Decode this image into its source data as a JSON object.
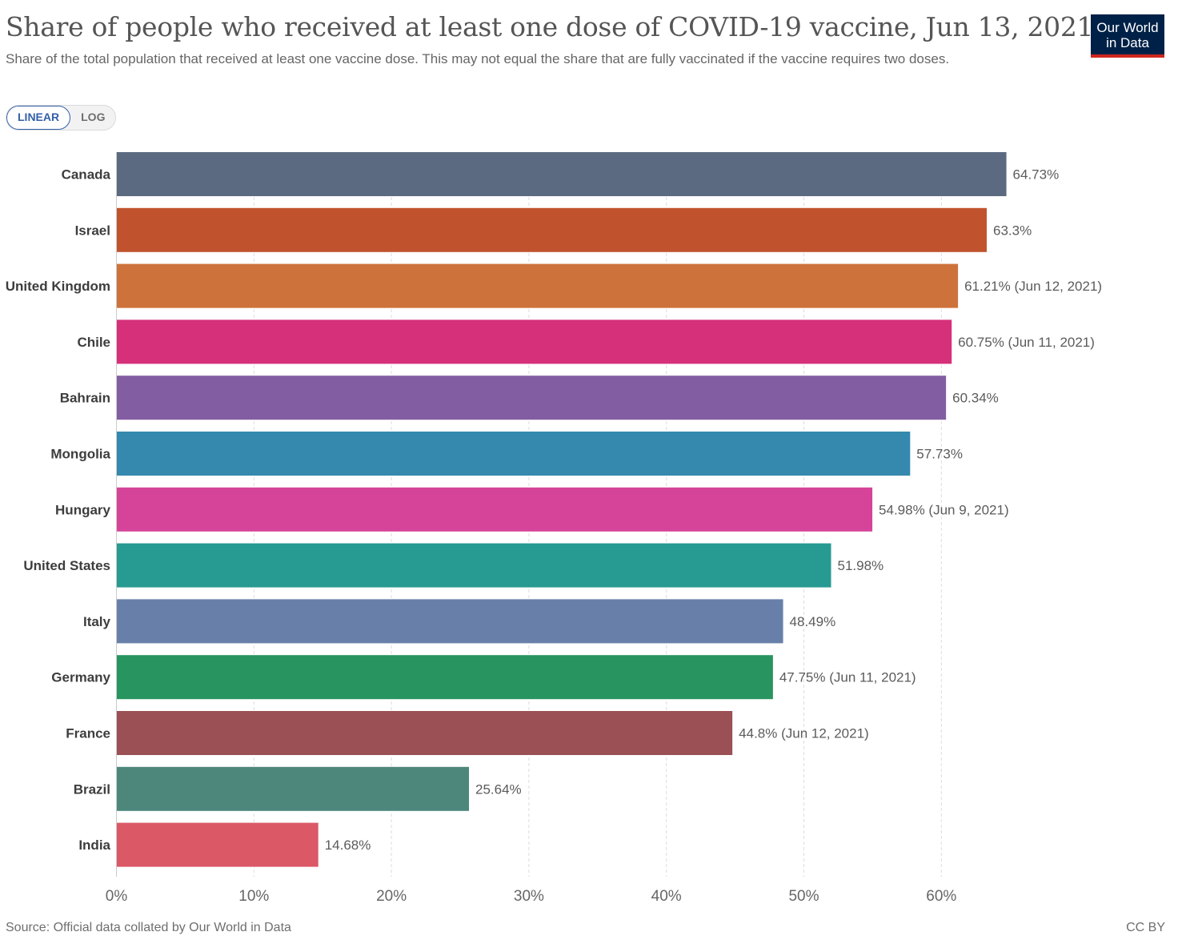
{
  "header": {
    "title": "Share of people who received at least one dose of COVID-19 vaccine, Jun 13, 2021",
    "subtitle": "Share of the total population that received at least one vaccine dose. This may not equal the share that are fully vaccinated if the vaccine requires two doses.",
    "logo_line1": "Our World",
    "logo_line2": "in Data"
  },
  "scale_toggle": {
    "linear_label": "LINEAR",
    "log_label": "LOG",
    "selected": "LINEAR"
  },
  "footer": {
    "source": "Source: Official data collated by Our World in Data",
    "license": "CC BY"
  },
  "chart_data": {
    "type": "bar",
    "orientation": "horizontal",
    "categories": [
      "Canada",
      "Israel",
      "United Kingdom",
      "Chile",
      "Bahrain",
      "Mongolia",
      "Hungary",
      "United States",
      "Italy",
      "Germany",
      "France",
      "Brazil",
      "India"
    ],
    "values": [
      64.73,
      63.3,
      61.21,
      60.75,
      60.34,
      57.73,
      54.98,
      51.98,
      48.49,
      47.75,
      44.8,
      25.64,
      14.68
    ],
    "value_labels": [
      "64.73%",
      "63.3%",
      "61.21% (Jun 12, 2021)",
      "60.75% (Jun 11, 2021)",
      "60.34%",
      "57.73%",
      "54.98% (Jun 9, 2021)",
      "51.98%",
      "48.49%",
      "47.75% (Jun 11, 2021)",
      "44.8% (Jun 12, 2021)",
      "25.64%",
      "14.68%"
    ],
    "colors": [
      "#5b6a80",
      "#c0532d",
      "#cd723a",
      "#d6307a",
      "#835da1",
      "#3589ae",
      "#d6449a",
      "#279a91",
      "#6880a9",
      "#289460",
      "#9a5054",
      "#4d877c",
      "#db5867"
    ],
    "xlim": [
      0,
      65
    ],
    "xticks": [
      0,
      10,
      20,
      30,
      40,
      50,
      60
    ],
    "xtick_labels": [
      "0%",
      "10%",
      "20%",
      "30%",
      "40%",
      "50%",
      "60%"
    ],
    "grid": true,
    "unit": "%"
  }
}
